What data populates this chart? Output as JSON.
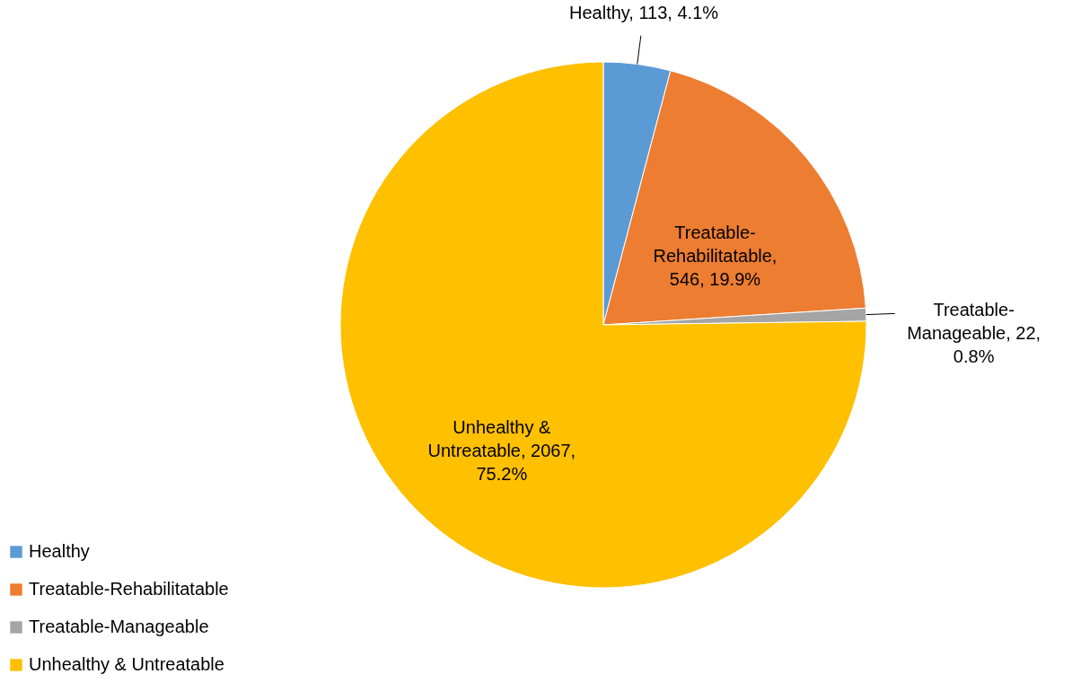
{
  "chart_data": {
    "type": "pie",
    "categories": [
      "Healthy",
      "Treatable-Rehabilitatable",
      "Treatable-Manageable",
      "Unhealthy & Untreatable"
    ],
    "values": [
      113,
      546,
      22,
      2067
    ],
    "colors": [
      "#5b9bd5",
      "#ed7d31",
      "#a5a5a5",
      "#ffc000"
    ],
    "value_labels": [
      "Healthy, 113, 4.1%",
      "Treatable-Rehabilitatable, 546, 19.9%",
      "Treatable-Manageable, 22, 0.8%",
      "Unhealthy & Untreatable, 2067, 75.2%"
    ],
    "legend": "bottom left"
  }
}
